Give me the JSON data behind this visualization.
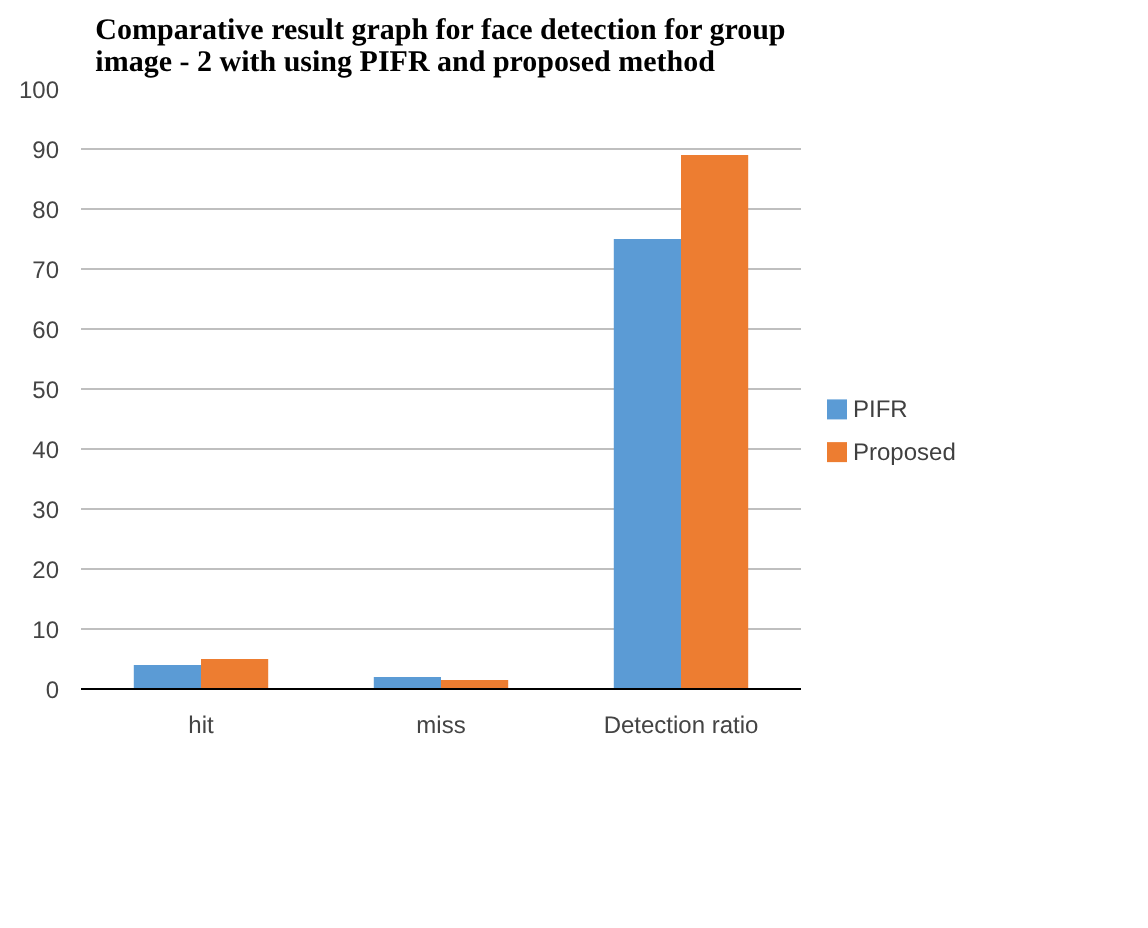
{
  "chart_data": {
    "type": "bar",
    "title": "Comparative result graph for face detection for group image - 2 with using PIFR and proposed method",
    "categories": [
      "hit",
      "miss",
      "Detection ratio"
    ],
    "series": [
      {
        "name": "PIFR",
        "color": "#5b9bd5",
        "values": [
          4,
          2,
          75
        ]
      },
      {
        "name": "Proposed",
        "color": "#ed7d31",
        "values": [
          5,
          1.5,
          89
        ]
      }
    ],
    "ylim": [
      0,
      100
    ],
    "yticks": [
      0,
      10,
      20,
      30,
      40,
      50,
      60,
      70,
      80,
      90,
      100
    ],
    "grid": "y",
    "legend": "right"
  }
}
